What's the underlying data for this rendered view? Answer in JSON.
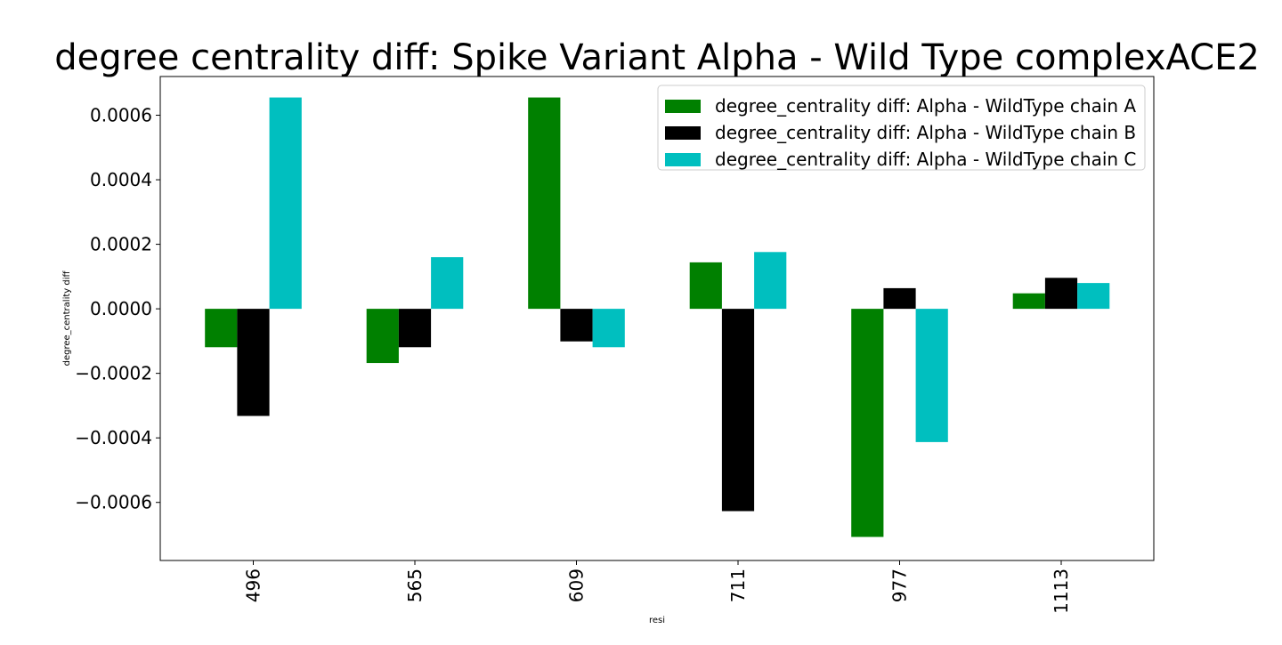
{
  "chart_data": {
    "type": "bar",
    "title": "degree centrality diff: Spike Variant Alpha - Wild Type complexACE2",
    "xlabel": "resi",
    "ylabel": "degree_centrality diff",
    "categories": [
      "496",
      "565",
      "609",
      "711",
      "977",
      "1113"
    ],
    "ylim": [
      -0.00078,
      0.00072
    ],
    "yticks": [
      -0.0006,
      -0.0004,
      -0.0002,
      0.0,
      0.0002,
      0.0004,
      0.0006
    ],
    "ytick_labels": [
      "−0.0006",
      "−0.0004",
      "−0.0002",
      "0.0000",
      "0.0002",
      "0.0004",
      "0.0006"
    ],
    "grid": false,
    "legend_position": "top-right",
    "series": [
      {
        "name": "degree_centrality diff: Alpha - WildType chain A",
        "color": "#008000",
        "values": [
          -0.000119,
          -0.000168,
          0.000655,
          0.000144,
          -0.000707,
          4.8e-05
        ]
      },
      {
        "name": "degree_centrality diff: Alpha - WildType chain B",
        "color": "#000000",
        "values": [
          -0.000332,
          -0.000119,
          -0.000101,
          -0.000627,
          6.4e-05,
          9.6e-05
        ]
      },
      {
        "name": "degree_centrality diff: Alpha - WildType chain C",
        "color": "#00bfbf",
        "values": [
          0.000655,
          0.00016,
          -0.000119,
          0.000176,
          -0.000413,
          8e-05
        ]
      }
    ]
  }
}
